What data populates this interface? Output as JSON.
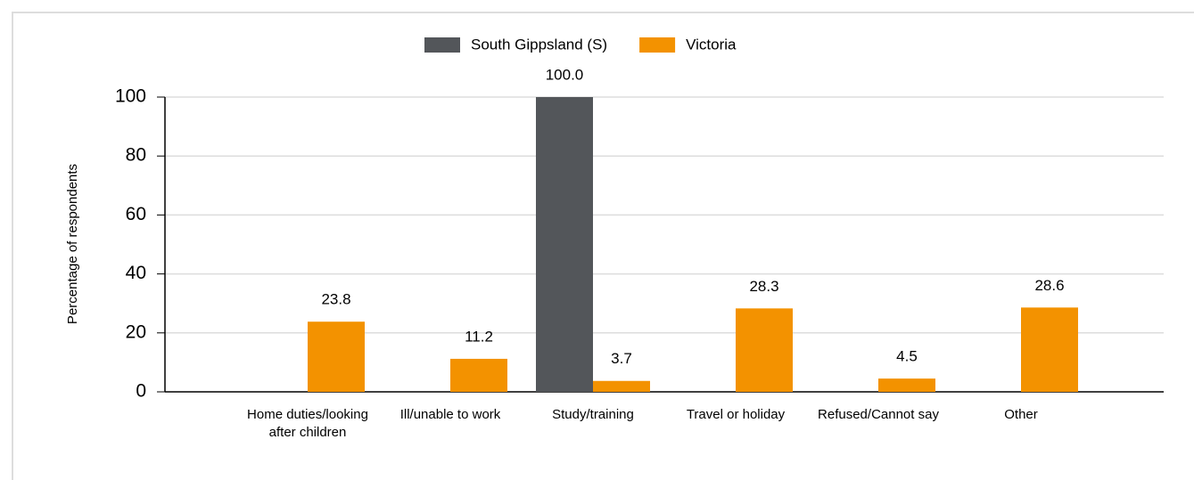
{
  "chart_data": {
    "type": "bar",
    "y_label": "Percentage of respondents",
    "categories": [
      "Home duties/looking after children",
      "Ill/unable to work",
      "Study/training",
      "Travel or holiday",
      "Refused/Cannot say",
      "Other"
    ],
    "series": [
      {
        "name": "South Gippsland (S)",
        "color": "#53565a",
        "values": [
          null,
          null,
          100,
          null,
          null,
          null
        ],
        "value_labels": [
          null,
          null,
          "100.0",
          null,
          null,
          null
        ]
      },
      {
        "name": "Victoria",
        "color": "#f39200",
        "values": [
          23.8,
          11.2,
          3.7,
          28.3,
          4.5,
          28.6
        ]
      }
    ],
    "ylim": [
      0,
      100
    ],
    "yticks": [
      0,
      20,
      40,
      60,
      80,
      100
    ],
    "grid": true,
    "legend": "top"
  }
}
